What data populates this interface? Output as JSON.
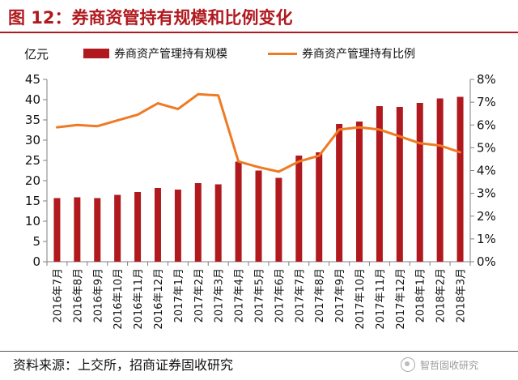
{
  "title": "图 12：券商资管持有规模和比例变化",
  "source": "资料来源：上交所，招商证券固收研究",
  "watermark": "智哲固收研究",
  "chart_data": {
    "type": "bar",
    "ylabel": "亿元",
    "ylim": [
      0,
      45
    ],
    "y_ticks": [
      "0",
      "5",
      "10",
      "15",
      "20",
      "25",
      "30",
      "35",
      "40",
      "45"
    ],
    "y2lim": [
      0,
      8
    ],
    "y2_ticks": [
      "0%",
      "1%",
      "2%",
      "3%",
      "4%",
      "5%",
      "6%",
      "7%",
      "8%"
    ],
    "categories": [
      "2016年7月",
      "2016年8月",
      "2016年9月",
      "2016年10月",
      "2016年11月",
      "2016年12月",
      "2017年1月",
      "2017年2月",
      "2017年3月",
      "2017年4月",
      "2017年5月",
      "2017年6月",
      "2017年7月",
      "2017年8月",
      "2017年9月",
      "2017年10月",
      "2017年11月",
      "2017年12月",
      "2018年1月",
      "2018年2月",
      "2018年3月"
    ],
    "series": [
      {
        "name": "券商资产管理持有规模",
        "type": "bar",
        "axis": "left",
        "color": "#b0191e",
        "values": [
          15.7,
          15.9,
          15.7,
          16.5,
          17.2,
          18.2,
          17.8,
          19.4,
          19.1,
          24.7,
          22.5,
          20.7,
          26.2,
          27.0,
          34.0,
          34.6,
          38.4,
          38.2,
          39.2,
          40.3,
          40.7
        ]
      },
      {
        "name": "券商资产管理持有比例",
        "type": "line",
        "axis": "right",
        "color": "#ee7b23",
        "values": [
          5.9,
          6.0,
          5.95,
          6.2,
          6.45,
          6.95,
          6.7,
          7.35,
          7.3,
          4.4,
          4.15,
          3.95,
          4.4,
          4.65,
          5.8,
          5.9,
          5.8,
          5.5,
          5.2,
          5.1,
          4.8
        ]
      }
    ]
  },
  "colors": {
    "bar": "#b0191e",
    "line": "#ee7b23",
    "axis": "#7f7f7f"
  }
}
